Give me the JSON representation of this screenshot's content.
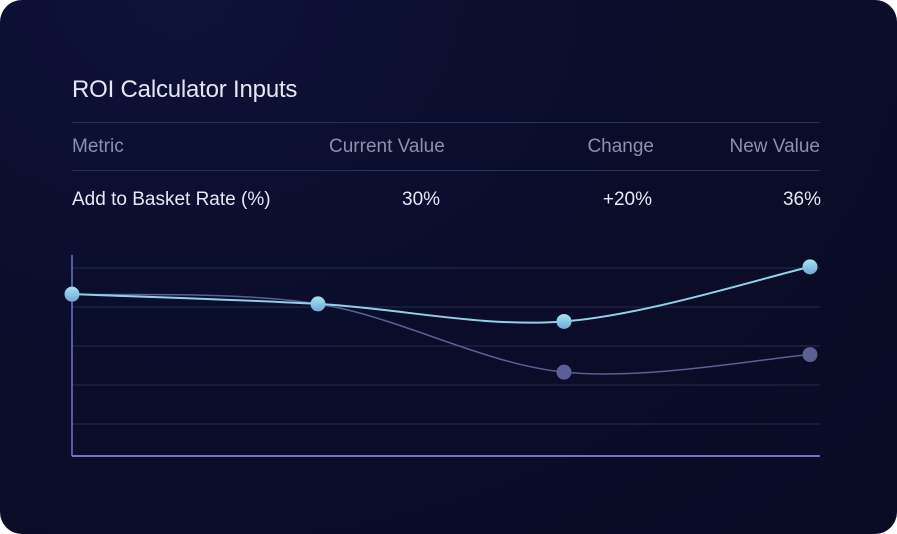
{
  "card": {
    "title": "ROI Calculator Inputs",
    "table": {
      "headers": [
        "Metric",
        "Current Value",
        "Change",
        "New Value"
      ],
      "rows": [
        {
          "metric": "Add to Basket Rate (%)",
          "current": "30%",
          "change": "+20%",
          "new": "36%"
        }
      ]
    }
  },
  "chart_data": {
    "type": "line",
    "x": [
      1,
      2,
      3,
      4
    ],
    "ylim": [
      0,
      5
    ],
    "grid": true,
    "series": [
      {
        "values": [
          4.15,
          3.9,
          3.45,
          4.85
        ],
        "color": "#8fd3e8"
      },
      {
        "values": [
          4.15,
          3.9,
          2.15,
          2.6
        ],
        "color": "#5b5f93"
      }
    ],
    "axis_color": "#6f74c9"
  }
}
